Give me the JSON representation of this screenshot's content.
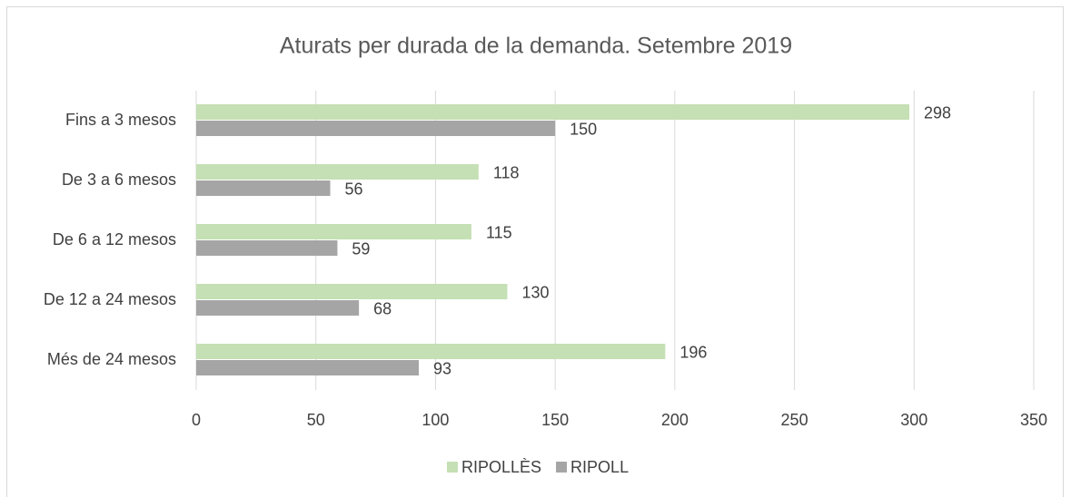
{
  "chart_data": {
    "type": "bar",
    "orientation": "horizontal",
    "title": "Aturats per durada de la demanda. Setembre 2019",
    "categories": [
      "Fins a 3 mesos",
      "De 3 a 6 mesos",
      "De 6 a 12 mesos",
      "De 12 a 24 mesos",
      "Més de 24 mesos"
    ],
    "series": [
      {
        "name": "RIPOLLÈS",
        "color": "#c5e0b4",
        "values": [
          298,
          118,
          115,
          130,
          196
        ]
      },
      {
        "name": "RIPOLL",
        "color": "#a5a5a5",
        "values": [
          150,
          56,
          59,
          68,
          93
        ]
      }
    ],
    "xlim": [
      0,
      350
    ],
    "xticks": [
      0,
      50,
      100,
      150,
      200,
      250,
      300,
      350
    ],
    "grid": true,
    "legend": "bottom"
  }
}
